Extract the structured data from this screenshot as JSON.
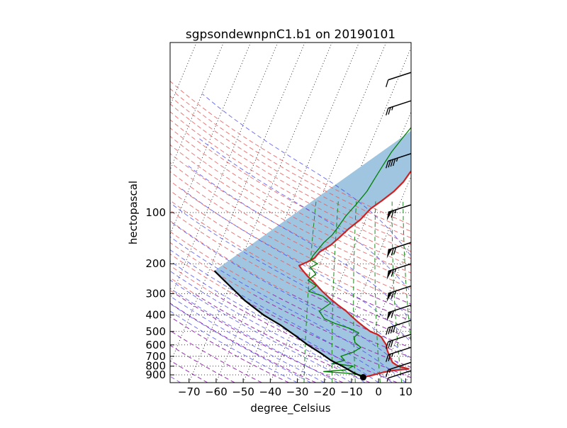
{
  "chart_data": {
    "type": "line",
    "title": "sgpsondewnpnC1.b1 on 20190101",
    "xlabel": "degree_Celsius",
    "ylabel": "hectopascal",
    "xlim": [
      -77,
      12
    ],
    "ylim": [
      1000,
      10
    ],
    "y_scale": "log",
    "x_ticks": [
      -70,
      -60,
      -50,
      -40,
      -30,
      -20,
      -10,
      0,
      10
    ],
    "x_tick_labels": [
      "−70",
      "−60",
      "−50",
      "−40",
      "−30",
      "−20",
      "−10",
      "0",
      "10"
    ],
    "y_ticks": [
      100,
      200,
      300,
      400,
      500,
      600,
      700,
      800,
      900
    ],
    "y_tick_labels": [
      "100",
      "200",
      "300",
      "400",
      "500",
      "600",
      "700",
      "800",
      "900"
    ],
    "grid": true,
    "colors": {
      "temperature": "#cc2222",
      "dewpoint": "#008000",
      "parcel": "#000000",
      "cape_fill": "#9fc5e1",
      "dry_adiabats": "#e86060",
      "moist_adiabats": "#4444ee",
      "mixing_ratio": "#228b22",
      "isotherms": "#000000",
      "extra_dashed": "#7a2ad0"
    },
    "series": [
      {
        "kind": "temperature",
        "points": [
          [
            -6.5,
            930
          ],
          [
            -3,
            900
          ],
          [
            0,
            870
          ],
          [
            3,
            850
          ],
          [
            6,
            840
          ],
          [
            9,
            830
          ],
          [
            6,
            810
          ],
          [
            4,
            790
          ],
          [
            2,
            760
          ],
          [
            1,
            730
          ],
          [
            0,
            700
          ],
          [
            -1,
            670
          ],
          [
            -2,
            640
          ],
          [
            -3,
            600
          ],
          [
            -5,
            560
          ],
          [
            -6,
            540
          ],
          [
            -8,
            520
          ],
          [
            -11,
            500
          ],
          [
            -14,
            470
          ],
          [
            -17,
            440
          ],
          [
            -20,
            410
          ],
          [
            -23,
            380
          ],
          [
            -27,
            350
          ],
          [
            -31,
            320
          ],
          [
            -35,
            290
          ],
          [
            -39,
            260
          ],
          [
            -43,
            235
          ],
          [
            -46,
            215
          ],
          [
            -47.5,
            205
          ],
          [
            -45,
            195
          ],
          [
            -43,
            185
          ],
          [
            -42,
            170
          ],
          [
            -39,
            155
          ],
          [
            -37,
            140
          ],
          [
            -35,
            125
          ],
          [
            -32,
            110
          ],
          [
            -30,
            95
          ],
          [
            -27,
            85
          ],
          [
            -24,
            75
          ],
          [
            -22,
            66
          ],
          [
            -21,
            58
          ],
          [
            -19,
            50
          ],
          [
            -17,
            44
          ],
          [
            -15,
            38
          ],
          [
            -13,
            33
          ],
          [
            -12,
            28
          ],
          [
            -10,
            24
          ],
          [
            -8,
            20
          ],
          [
            -6,
            17
          ],
          [
            -4,
            14
          ],
          [
            -2,
            12
          ],
          [
            0,
            11
          ],
          [
            2,
            10.5
          ],
          [
            5,
            10
          ]
        ]
      },
      {
        "kind": "dewpoint",
        "points": [
          [
            -6.5,
            930
          ],
          [
            -8,
            900
          ],
          [
            -13,
            880
          ],
          [
            -22,
            860
          ],
          [
            -14,
            840
          ],
          [
            -12,
            800
          ],
          [
            -20,
            770
          ],
          [
            -16,
            740
          ],
          [
            -18,
            700
          ],
          [
            -14,
            660
          ],
          [
            -12,
            620
          ],
          [
            -15,
            580
          ],
          [
            -16,
            540
          ],
          [
            -15,
            510
          ],
          [
            -19,
            480
          ],
          [
            -25,
            450
          ],
          [
            -30,
            420
          ],
          [
            -33,
            380
          ],
          [
            -30,
            340
          ],
          [
            -34,
            310
          ],
          [
            -40,
            290
          ],
          [
            -38,
            270
          ],
          [
            -42,
            250
          ],
          [
            -40,
            230
          ],
          [
            -43,
            210
          ],
          [
            -41,
            200
          ],
          [
            -44,
            190
          ],
          [
            -44,
            180
          ],
          [
            -43,
            165
          ],
          [
            -42,
            150
          ],
          [
            -40,
            135
          ],
          [
            -39,
            120
          ],
          [
            -38,
            105
          ],
          [
            -36,
            90
          ],
          [
            -34,
            75
          ],
          [
            -33,
            62
          ],
          [
            -32,
            52
          ],
          [
            -31,
            44
          ],
          [
            -29,
            36
          ],
          [
            -27,
            30
          ],
          [
            -25,
            24
          ],
          [
            -23,
            19
          ],
          [
            -21,
            15
          ],
          [
            -19,
            12
          ],
          [
            -18,
            10
          ]
        ]
      },
      {
        "kind": "parcel",
        "points": [
          [
            -6.5,
            930
          ],
          [
            -11,
            870
          ],
          [
            -16,
            800
          ],
          [
            -21,
            740
          ],
          [
            -26,
            670
          ],
          [
            -32,
            600
          ],
          [
            -38,
            530
          ],
          [
            -45,
            460
          ],
          [
            -53,
            400
          ],
          [
            -62,
            330
          ],
          [
            -70,
            270
          ],
          [
            -78,
            220
          ]
        ]
      }
    ],
    "surface_marker": {
      "temperature": -6.5,
      "pressure": 930
    },
    "wind_barbs": [
      {
        "pressure": 15,
        "speed": 10
      },
      {
        "pressure": 22,
        "speed": 25
      },
      {
        "pressure": 45,
        "speed": 45
      },
      {
        "pressure": 90,
        "speed": 65
      },
      {
        "pressure": 150,
        "speed": 70
      },
      {
        "pressure": 200,
        "speed": 65
      },
      {
        "pressure": 270,
        "speed": 65
      },
      {
        "pressure": 350,
        "speed": 60
      },
      {
        "pressure": 430,
        "speed": 40
      },
      {
        "pressure": 520,
        "speed": 30
      },
      {
        "pressure": 620,
        "speed": 25
      },
      {
        "pressure": 760,
        "speed": 15
      },
      {
        "pressure": 850,
        "speed": 5
      }
    ]
  }
}
